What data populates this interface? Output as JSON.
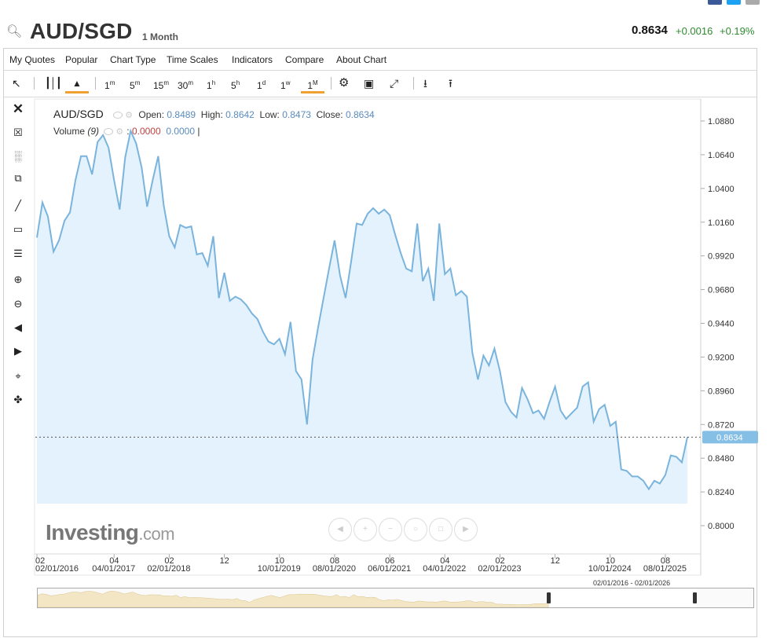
{
  "header": {
    "symbol": "AUD/SGD",
    "period": "1 Month",
    "price": "0.8634",
    "change": "+0.0016",
    "change_pct": "+0.19%"
  },
  "menu": [
    "My Quotes",
    "Popular",
    "Chart Type",
    "Time Scales",
    "Indicators",
    "Compare",
    "About Chart"
  ],
  "toolbar": {
    "timescales": [
      "1m",
      "5m",
      "15m",
      "30m",
      "1h",
      "5h",
      "1d",
      "1w",
      "1M"
    ],
    "active_timescale": "1M"
  },
  "legend": {
    "symbol": "AUD/SGD",
    "open_label": "Open:",
    "open": "0.8489",
    "high_label": "High:",
    "high": "0.8642",
    "low_label": "Low:",
    "low": "0.8473",
    "close_label": "Close:",
    "close": "0.8634",
    "volume_label": "Volume",
    "volume_period": "(9)",
    "volume_v1": "0.0000",
    "volume_v2": "0.0000"
  },
  "brand": {
    "name": "Investing",
    "suffix": ".com"
  },
  "navigator": {
    "range": "02/01/2016 - 02/01/2026"
  },
  "colors": {
    "line": "#7ab4dd",
    "area": "#e3f2fc",
    "positive": "#2e8b2e",
    "price_tag": "#86bfe6"
  },
  "chart_data": {
    "type": "area",
    "title": "AUD/SGD",
    "ylim": [
      0.8,
      1.088
    ],
    "yticks": [
      "1.0880",
      "1.0640",
      "1.0400",
      "1.0160",
      "0.9920",
      "0.9680",
      "0.9440",
      "0.9200",
      "0.8960",
      "0.8720",
      "0.8480",
      "0.8240",
      "0.8000"
    ],
    "last_price_label": "0.8634",
    "x_tick_labels": [
      {
        "top": "02",
        "bottom": "02/01/2016",
        "i": 0
      },
      {
        "top": "04",
        "bottom": "04/01/2017",
        "i": 14
      },
      {
        "top": "02",
        "bottom": "02/01/2018",
        "i": 24
      },
      {
        "top": "12",
        "bottom": "",
        "i": 34
      },
      {
        "top": "10",
        "bottom": "10/01/2019",
        "i": 44
      },
      {
        "top": "08",
        "bottom": "08/01/2020",
        "i": 54
      },
      {
        "top": "06",
        "bottom": "06/01/2021",
        "i": 64
      },
      {
        "top": "04",
        "bottom": "04/01/2022",
        "i": 74
      },
      {
        "top": "02",
        "bottom": "02/01/2023",
        "i": 84
      },
      {
        "top": "12",
        "bottom": "",
        "i": 94
      },
      {
        "top": "10",
        "bottom": "10/01/2024",
        "i": 104
      },
      {
        "top": "08",
        "bottom": "08/01/2025",
        "i": 114
      }
    ],
    "series": [
      {
        "values": [
          1.005,
          1.03,
          1.02,
          0.995,
          1.003,
          1.017,
          1.023,
          1.046,
          1.063,
          1.063,
          1.05,
          1.073,
          1.078,
          1.069,
          1.046,
          1.025,
          1.062,
          1.081,
          1.072,
          1.055,
          1.027,
          1.046,
          1.063,
          1.028,
          1.006,
          0.998,
          1.014,
          1.012,
          1.013,
          0.993,
          0.994,
          0.985,
          1.006,
          0.962,
          0.98,
          0.96,
          0.963,
          0.961,
          0.957,
          0.951,
          0.947,
          0.938,
          0.931,
          0.929,
          0.933,
          0.922,
          0.945,
          0.91,
          0.904,
          0.872,
          0.918,
          0.941,
          0.962,
          0.983,
          1.003,
          0.978,
          0.962,
          0.988,
          1.015,
          1.014,
          1.022,
          1.026,
          1.022,
          1.025,
          1.021,
          1.007,
          0.994,
          0.983,
          0.981,
          1.015,
          0.974,
          0.983,
          0.96,
          1.015,
          0.979,
          0.983,
          0.964,
          0.967,
          0.963,
          0.923,
          0.904,
          0.921,
          0.914,
          0.926,
          0.91,
          0.888,
          0.881,
          0.877,
          0.898,
          0.89,
          0.88,
          0.882,
          0.876,
          0.888,
          0.899,
          0.882,
          0.876,
          0.88,
          0.884,
          0.899,
          0.902,
          0.874,
          0.883,
          0.886,
          0.871,
          0.874,
          0.84,
          0.839,
          0.835,
          0.835,
          0.832,
          0.826,
          0.832,
          0.83,
          0.836,
          0.85,
          0.849,
          0.845,
          0.863
        ]
      }
    ]
  }
}
